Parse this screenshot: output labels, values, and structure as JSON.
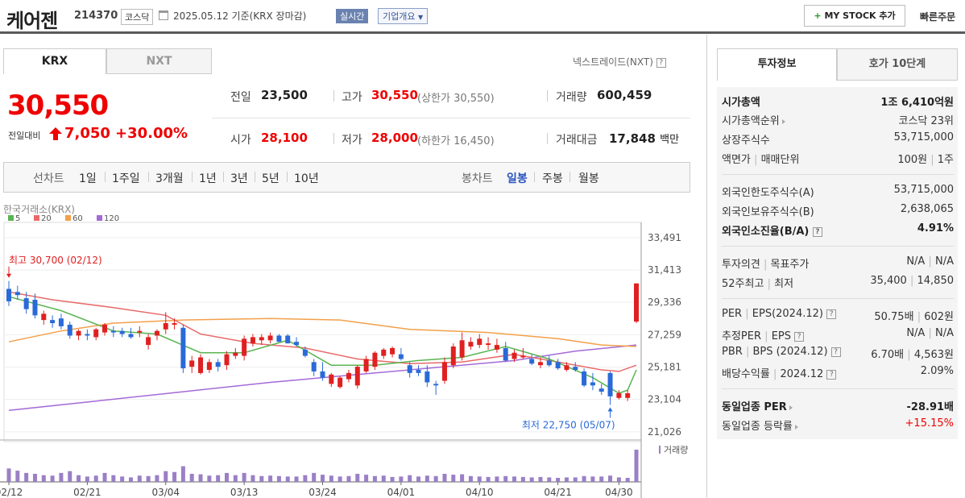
{
  "header": {
    "name": "케어젠",
    "code": "214370",
    "market": "코스닥",
    "date": "2025.05.12",
    "basis": "기준(KRX 장마감)",
    "realtime": "실시간",
    "company_info": "기업개요",
    "mystock": "MY STOCK 추가",
    "quick_order": "빠른주문"
  },
  "tabs": {
    "krx": "KRX",
    "nxt": "NXT",
    "nextrade": "넥스트레이드(NXT)"
  },
  "price": {
    "current": "30,550",
    "change_label": "전일대비",
    "change": "7,050",
    "change_pct": "+30.00%"
  },
  "summary": {
    "prev_lbl": "전일",
    "prev": "23,500",
    "high_lbl": "고가",
    "high": "30,550",
    "upper_lbl": "(상한가",
    "upper": "30,550)",
    "vol_lbl": "거래량",
    "vol": "600,459",
    "open_lbl": "시가",
    "open": "28,100",
    "low_lbl": "저가",
    "low": "28,000",
    "lower_lbl": "(하한가",
    "lower": "16,450)",
    "amt_lbl": "거래대금",
    "amt": "17,848",
    "amt_unit": "백만"
  },
  "toolbar": {
    "line_chart": "선차트",
    "periods": [
      "1일",
      "1주일",
      "3개월",
      "1년",
      "3년",
      "5년",
      "10년"
    ],
    "candle_chart": "봉차트",
    "candle_types": [
      "일봉",
      "주봉",
      "월봉"
    ]
  },
  "chart_data": {
    "type": "candlestick",
    "source": "한국거래소(KRX)",
    "legend": [
      "5",
      "20",
      "60",
      "120"
    ],
    "colors": {
      "ma5": "#5ab452",
      "ma20": "#e96a6a",
      "ma60": "#f2a04a",
      "ma120": "#a46ad8",
      "up": "#e02020",
      "down": "#2a6ad8"
    },
    "yticks": [
      33491,
      31413,
      29336,
      27259,
      25181,
      23104,
      21026
    ],
    "ylim": [
      20500,
      34000
    ],
    "xticks": [
      "02/12",
      "02/21",
      "03/04",
      "03/13",
      "03/24",
      "04/01",
      "04/10",
      "04/21",
      "04/30"
    ],
    "high_note": "최고 30,700 (02/12)",
    "low_note": "최저 22,750 (05/07)",
    "volume_label": "거래량",
    "candles": [
      {
        "o": 30200,
        "h": 30700,
        "l": 29100,
        "c": 29400
      },
      {
        "o": 30000,
        "h": 30400,
        "l": 29500,
        "c": 29800
      },
      {
        "o": 29600,
        "h": 30000,
        "l": 28600,
        "c": 28900
      },
      {
        "o": 29500,
        "h": 29900,
        "l": 28300,
        "c": 28500
      },
      {
        "o": 28200,
        "h": 28800,
        "l": 27900,
        "c": 28600
      },
      {
        "o": 28200,
        "h": 28500,
        "l": 27700,
        "c": 28000
      },
      {
        "o": 28300,
        "h": 28600,
        "l": 27600,
        "c": 27800
      },
      {
        "o": 27900,
        "h": 28100,
        "l": 27000,
        "c": 27200
      },
      {
        "o": 27200,
        "h": 27600,
        "l": 26900,
        "c": 27500
      },
      {
        "o": 27300,
        "h": 27600,
        "l": 26900,
        "c": 27200
      },
      {
        "o": 27100,
        "h": 27700,
        "l": 26900,
        "c": 27600
      },
      {
        "o": 27400,
        "h": 28000,
        "l": 27200,
        "c": 27900
      },
      {
        "o": 27500,
        "h": 27800,
        "l": 27100,
        "c": 27400
      },
      {
        "o": 27500,
        "h": 27700,
        "l": 27100,
        "c": 27300
      },
      {
        "o": 27300,
        "h": 27700,
        "l": 27000,
        "c": 27100
      },
      {
        "o": 27400,
        "h": 27800,
        "l": 27100,
        "c": 27500
      },
      {
        "o": 26600,
        "h": 27300,
        "l": 26300,
        "c": 27100
      },
      {
        "o": 27200,
        "h": 27600,
        "l": 26900,
        "c": 27500
      },
      {
        "o": 27600,
        "h": 28700,
        "l": 27300,
        "c": 28000
      },
      {
        "o": 27900,
        "h": 28300,
        "l": 27600,
        "c": 28000
      },
      {
        "o": 27700,
        "h": 27900,
        "l": 24800,
        "c": 25100
      },
      {
        "o": 25200,
        "h": 25900,
        "l": 24800,
        "c": 25600
      },
      {
        "o": 24800,
        "h": 26000,
        "l": 24700,
        "c": 25800
      },
      {
        "o": 25000,
        "h": 25700,
        "l": 24800,
        "c": 25500
      },
      {
        "o": 25500,
        "h": 25700,
        "l": 24900,
        "c": 25200
      },
      {
        "o": 25300,
        "h": 26200,
        "l": 25000,
        "c": 26000
      },
      {
        "o": 25900,
        "h": 26400,
        "l": 25700,
        "c": 26100
      },
      {
        "o": 25900,
        "h": 27200,
        "l": 25600,
        "c": 27000
      },
      {
        "o": 26700,
        "h": 27300,
        "l": 26500,
        "c": 27100
      },
      {
        "o": 26900,
        "h": 27300,
        "l": 26600,
        "c": 27100
      },
      {
        "o": 26900,
        "h": 27400,
        "l": 26700,
        "c": 27200
      },
      {
        "o": 27200,
        "h": 27300,
        "l": 26800,
        "c": 26800
      },
      {
        "o": 27200,
        "h": 27300,
        "l": 26700,
        "c": 26700
      },
      {
        "o": 26800,
        "h": 27100,
        "l": 26500,
        "c": 26600
      },
      {
        "o": 26300,
        "h": 26500,
        "l": 25800,
        "c": 25900
      },
      {
        "o": 25500,
        "h": 25700,
        "l": 24600,
        "c": 24900
      },
      {
        "o": 24900,
        "h": 25500,
        "l": 24300,
        "c": 24500
      },
      {
        "o": 24100,
        "h": 24800,
        "l": 23900,
        "c": 24700
      },
      {
        "o": 23900,
        "h": 24600,
        "l": 23800,
        "c": 24500
      },
      {
        "o": 24400,
        "h": 25000,
        "l": 24200,
        "c": 24800
      },
      {
        "o": 24000,
        "h": 25300,
        "l": 23800,
        "c": 25200
      },
      {
        "o": 24900,
        "h": 25900,
        "l": 24800,
        "c": 25700
      },
      {
        "o": 25200,
        "h": 26200,
        "l": 25000,
        "c": 26100
      },
      {
        "o": 25900,
        "h": 26400,
        "l": 25700,
        "c": 26300
      },
      {
        "o": 26000,
        "h": 26500,
        "l": 25800,
        "c": 26400
      },
      {
        "o": 26000,
        "h": 26400,
        "l": 25600,
        "c": 25700
      },
      {
        "o": 25300,
        "h": 25500,
        "l": 24500,
        "c": 24800
      },
      {
        "o": 25000,
        "h": 25300,
        "l": 24600,
        "c": 24800
      },
      {
        "o": 24900,
        "h": 25300,
        "l": 23900,
        "c": 24200
      },
      {
        "o": 24100,
        "h": 24300,
        "l": 23400,
        "c": 24000
      },
      {
        "o": 24300,
        "h": 25800,
        "l": 24100,
        "c": 25500
      },
      {
        "o": 25300,
        "h": 26700,
        "l": 25100,
        "c": 26500
      },
      {
        "o": 25800,
        "h": 27400,
        "l": 25600,
        "c": 26900
      },
      {
        "o": 26500,
        "h": 27100,
        "l": 26300,
        "c": 26800
      },
      {
        "o": 26600,
        "h": 27300,
        "l": 26400,
        "c": 27000
      },
      {
        "o": 26600,
        "h": 27100,
        "l": 26300,
        "c": 26700
      },
      {
        "o": 26300,
        "h": 27000,
        "l": 26100,
        "c": 26600
      },
      {
        "o": 26400,
        "h": 26800,
        "l": 25500,
        "c": 25600
      },
      {
        "o": 25700,
        "h": 26300,
        "l": 25500,
        "c": 26100
      },
      {
        "o": 25800,
        "h": 26400,
        "l": 25700,
        "c": 25900
      },
      {
        "o": 25700,
        "h": 26000,
        "l": 25300,
        "c": 25400
      },
      {
        "o": 25300,
        "h": 25800,
        "l": 25100,
        "c": 25500
      },
      {
        "o": 25600,
        "h": 25900,
        "l": 25200,
        "c": 25300
      },
      {
        "o": 25500,
        "h": 25700,
        "l": 25000,
        "c": 25100
      },
      {
        "o": 25000,
        "h": 25500,
        "l": 24900,
        "c": 25300
      },
      {
        "o": 25200,
        "h": 25500,
        "l": 24900,
        "c": 25000
      },
      {
        "o": 24900,
        "h": 25100,
        "l": 23900,
        "c": 24000
      },
      {
        "o": 24200,
        "h": 24800,
        "l": 23700,
        "c": 24000
      },
      {
        "o": 23800,
        "h": 24100,
        "l": 23400,
        "c": 23600
      },
      {
        "o": 24800,
        "h": 24900,
        "l": 22750,
        "c": 23300
      },
      {
        "o": 23200,
        "h": 23700,
        "l": 23100,
        "c": 23500
      },
      {
        "o": 23200,
        "h": 23700,
        "l": 23000,
        "c": 23500
      },
      {
        "o": 28100,
        "h": 30550,
        "l": 28000,
        "c": 30550
      }
    ],
    "volume": [
      30,
      25,
      20,
      18,
      15,
      14,
      20,
      24,
      15,
      12,
      14,
      20,
      15,
      12,
      10,
      14,
      13,
      15,
      24,
      22,
      35,
      18,
      17,
      14,
      15,
      20,
      15,
      20,
      15,
      13,
      14,
      13,
      12,
      12,
      15,
      20,
      16,
      14,
      12,
      13,
      18,
      16,
      13,
      14,
      11,
      12,
      15,
      12,
      14,
      13,
      18,
      16,
      17,
      13,
      12,
      11,
      12,
      13,
      12,
      11,
      10,
      11,
      10,
      9,
      10,
      10,
      13,
      12,
      12,
      14,
      10,
      9,
      72
    ],
    "ma5": [
      [
        0,
        29700
      ],
      [
        6,
        28800
      ],
      [
        12,
        27500
      ],
      [
        17,
        27300
      ],
      [
        22,
        26100
      ],
      [
        27,
        26100
      ],
      [
        32,
        26900
      ],
      [
        37,
        25300
      ],
      [
        42,
        25300
      ],
      [
        47,
        25600
      ],
      [
        52,
        25800
      ],
      [
        57,
        26500
      ],
      [
        62,
        25700
      ],
      [
        67,
        24500
      ],
      [
        70,
        23500
      ],
      [
        71,
        23700
      ],
      [
        72,
        25000
      ]
    ],
    "ma20": [
      [
        0,
        30000
      ],
      [
        5,
        29500
      ],
      [
        12,
        29000
      ],
      [
        18,
        28500
      ],
      [
        22,
        27300
      ],
      [
        28,
        26700
      ],
      [
        34,
        26400
      ],
      [
        40,
        25700
      ],
      [
        46,
        25400
      ],
      [
        52,
        25500
      ],
      [
        58,
        26000
      ],
      [
        63,
        25500
      ],
      [
        68,
        25000
      ],
      [
        70,
        24900
      ],
      [
        72,
        25300
      ]
    ],
    "ma60": [
      [
        0,
        26800
      ],
      [
        6,
        27500
      ],
      [
        12,
        28000
      ],
      [
        20,
        28200
      ],
      [
        30,
        28300
      ],
      [
        38,
        28200
      ],
      [
        46,
        27600
      ],
      [
        55,
        27400
      ],
      [
        63,
        27000
      ],
      [
        68,
        26600
      ],
      [
        72,
        26500
      ]
    ],
    "ma120": [
      [
        0,
        22400
      ],
      [
        10,
        23000
      ],
      [
        20,
        23600
      ],
      [
        30,
        24200
      ],
      [
        40,
        24700
      ],
      [
        50,
        25200
      ],
      [
        58,
        25600
      ],
      [
        65,
        26200
      ],
      [
        72,
        26600
      ]
    ]
  },
  "right": {
    "tab1": "투자정보",
    "tab2": "호가 10단계",
    "mcap_lbl": "시가총액",
    "mcap": "1조 6,410억원",
    "rank_lbl": "시가총액순위",
    "rank": "코스닥 23위",
    "shares_lbl": "상장주식수",
    "shares": "53,715,000",
    "par_lbl": "액면가",
    "unit_lbl": "매매단위",
    "par": "100원",
    "unit": "1주",
    "flimit_lbl": "외국인한도주식수(A)",
    "flimit": "53,715,000",
    "fhold_lbl": "외국인보유주식수(B)",
    "fhold": "2,638,065",
    "fratio_lbl": "외국인소진율(B/A)",
    "fratio": "4.91%",
    "opinion_lbl": "투자의견",
    "target_lbl": "목표주가",
    "opinion": "N/A",
    "target": "N/A",
    "w52_lbl": "52주최고",
    "w52low_lbl": "최저",
    "w52high": "35,400",
    "w52low": "14,850",
    "per_lbl": "PER",
    "eps_lbl": "EPS(2024.12)",
    "per": "50.75배",
    "eps": "602원",
    "eper_lbl": "추정PER",
    "eeps_lbl": "EPS",
    "eper": "N/A",
    "eeps": "N/A",
    "pbr_lbl": "PBR",
    "bps_lbl": "BPS (2024.12)",
    "pbr": "6.70배",
    "bps": "4,563원",
    "div_lbl": "배당수익률",
    "div_date": "2024.12",
    "div": "2.09%",
    "sector_per_lbl": "동일업종 PER",
    "sector_per": "-28.91배",
    "sector_chg_lbl": "동일업종 등락률",
    "sector_chg": "+15.15%"
  }
}
